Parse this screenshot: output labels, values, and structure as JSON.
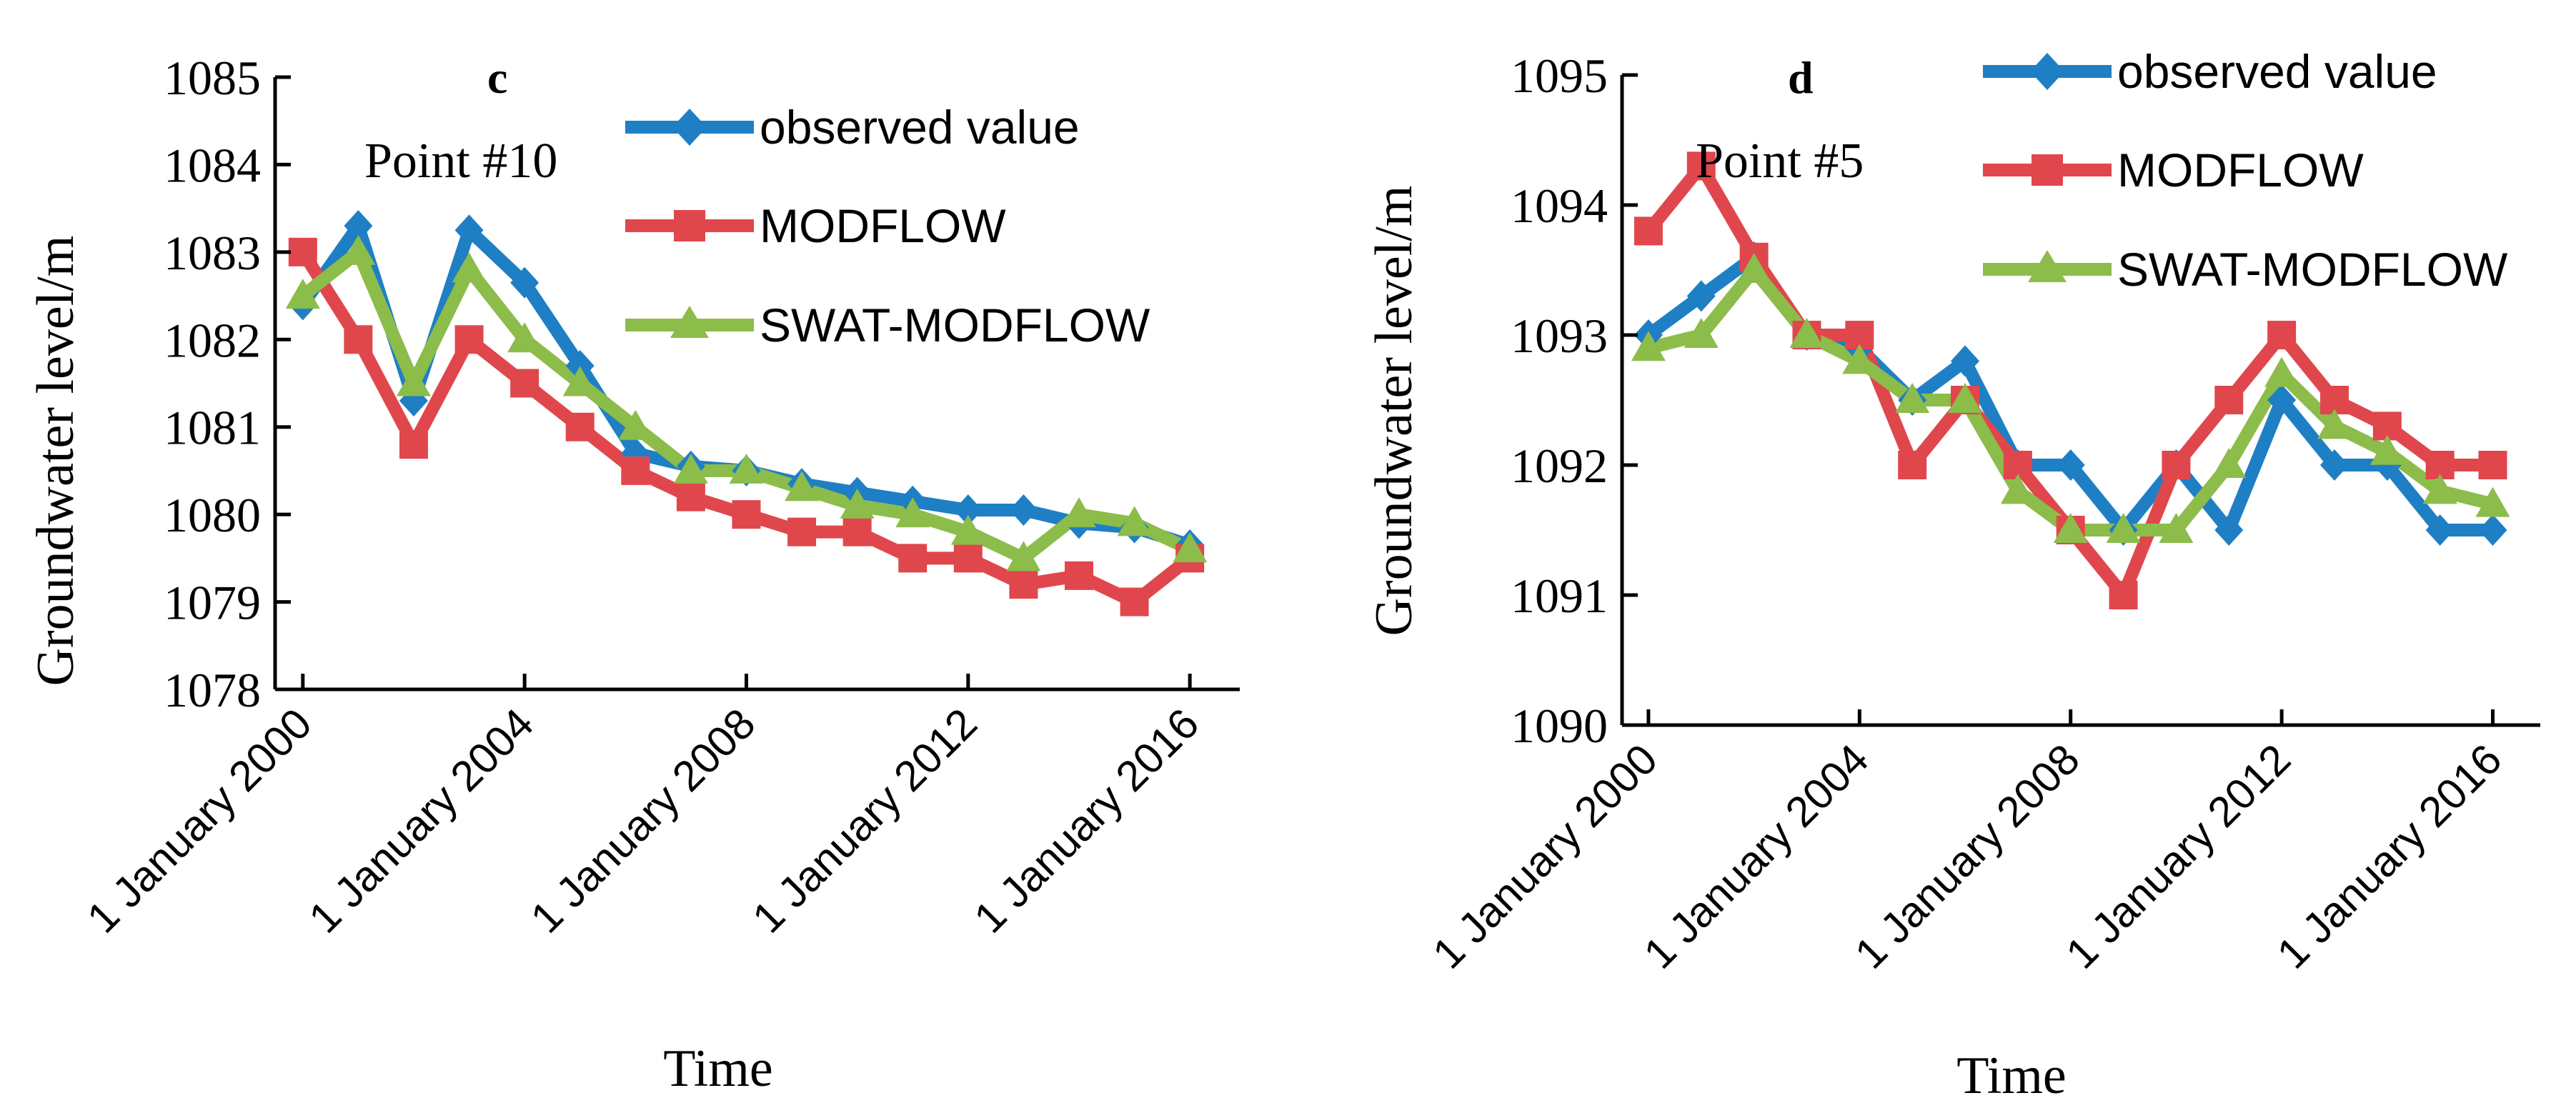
{
  "chart_data": [
    {
      "type": "line",
      "panel_label": "c",
      "point_label": "Point #10",
      "xlabel": "Time",
      "ylabel": "Groundwater level/m",
      "ylim": [
        1078,
        1085
      ],
      "yticks": [
        1078,
        1079,
        1080,
        1081,
        1082,
        1083,
        1084,
        1085
      ],
      "xlim": [
        1999.5,
        2016.9
      ],
      "xticks": [
        2000,
        2004,
        2008,
        2012,
        2016
      ],
      "xtick_labels": [
        "1 January 2000",
        "1 January 2004",
        "1 January 2008",
        "1 January 2012",
        "1 January 2016"
      ],
      "x": [
        2000,
        2001,
        2002,
        2003,
        2004,
        2005,
        2006,
        2007,
        2008,
        2009,
        2010,
        2011,
        2012,
        2013,
        2014,
        2015,
        2016
      ],
      "legend_position": "top-right",
      "series": [
        {
          "name": "observed value",
          "color": "#1f7fc4",
          "marker": "diamond",
          "values": [
            1082.4,
            1083.3,
            1081.3,
            1083.25,
            1082.65,
            1081.7,
            1080.7,
            1080.55,
            1080.5,
            1080.35,
            1080.25,
            1080.15,
            1080.05,
            1080.05,
            1079.9,
            1079.85,
            1079.65
          ]
        },
        {
          "name": "MODFLOW",
          "color": "#e0474c",
          "marker": "square",
          "values": [
            1083.0,
            1082.0,
            1080.8,
            1082.0,
            1081.5,
            1081.0,
            1080.5,
            1080.2,
            1080.0,
            1079.8,
            1079.8,
            1079.5,
            1079.5,
            1079.2,
            1079.3,
            1079.0,
            1079.5
          ]
        },
        {
          "name": "SWAT-MODFLOW",
          "color": "#8cbc4a",
          "marker": "triangle",
          "values": [
            1082.5,
            1083.0,
            1081.5,
            1082.8,
            1082.0,
            1081.5,
            1081.0,
            1080.5,
            1080.5,
            1080.3,
            1080.1,
            1080.0,
            1079.8,
            1079.5,
            1080.0,
            1079.9,
            1079.6
          ]
        }
      ]
    },
    {
      "type": "line",
      "panel_label": "d",
      "point_label": "Point #5",
      "xlabel": "Time",
      "ylabel": "Groundwater level/m",
      "ylim": [
        1090,
        1095
      ],
      "yticks": [
        1090,
        1091,
        1092,
        1093,
        1094,
        1095
      ],
      "xlim": [
        1999.5,
        2016.9
      ],
      "xticks": [
        2000,
        2004,
        2008,
        2012,
        2016
      ],
      "xtick_labels": [
        "1 January 2000",
        "1 January 2004",
        "1 January 2008",
        "1 January 2012",
        "1 January 2016"
      ],
      "x": [
        2000,
        2001,
        2002,
        2003,
        2004,
        2005,
        2006,
        2007,
        2008,
        2009,
        2010,
        2011,
        2012,
        2013,
        2014,
        2015,
        2016
      ],
      "legend_position": "top-right",
      "series": [
        {
          "name": "observed value",
          "color": "#1f7fc4",
          "marker": "diamond",
          "values": [
            1093.0,
            1093.3,
            1093.6,
            1093.0,
            1092.9,
            1092.5,
            1092.8,
            1092.0,
            1092.0,
            1091.5,
            1092.0,
            1091.5,
            1092.5,
            1092.0,
            1092.0,
            1091.5,
            1091.5
          ]
        },
        {
          "name": "MODFLOW",
          "color": "#e0474c",
          "marker": "square",
          "values": [
            1093.8,
            1094.3,
            1093.6,
            1093.0,
            1093.0,
            1092.0,
            1092.5,
            1092.0,
            1091.5,
            1091.0,
            1092.0,
            1092.5,
            1093.0,
            1092.5,
            1092.3,
            1092.0,
            1092.0
          ]
        },
        {
          "name": "SWAT-MODFLOW",
          "color": "#8cbc4a",
          "marker": "triangle",
          "values": [
            1092.9,
            1093.0,
            1093.5,
            1093.0,
            1092.8,
            1092.5,
            1092.5,
            1091.8,
            1091.5,
            1091.5,
            1091.5,
            1092.0,
            1092.7,
            1092.3,
            1092.1,
            1091.8,
            1091.7
          ]
        }
      ]
    }
  ]
}
